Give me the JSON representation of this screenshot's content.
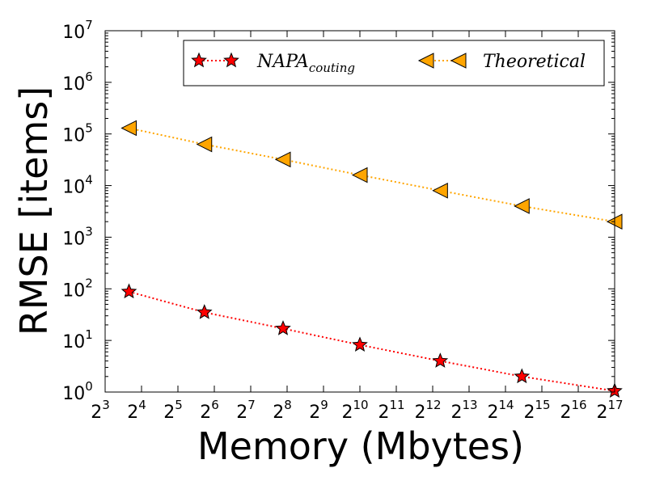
{
  "chart_data": {
    "type": "line",
    "xlabel": "Memory (Mbytes)",
    "ylabel": "RMSE [items]",
    "x_scale": "log2",
    "y_scale": "log10",
    "xlim": [
      8,
      131072
    ],
    "ylim": [
      1,
      10000000
    ],
    "x_ticks": [
      {
        "base": "2",
        "exp": "3",
        "value": 8
      },
      {
        "base": "2",
        "exp": "4",
        "value": 16
      },
      {
        "base": "2",
        "exp": "5",
        "value": 32
      },
      {
        "base": "2",
        "exp": "6",
        "value": 64
      },
      {
        "base": "2",
        "exp": "7",
        "value": 128
      },
      {
        "base": "2",
        "exp": "8",
        "value": 256
      },
      {
        "base": "2",
        "exp": "9",
        "value": 512
      },
      {
        "base": "2",
        "exp": "10",
        "value": 1024
      },
      {
        "base": "2",
        "exp": "11",
        "value": 2048
      },
      {
        "base": "2",
        "exp": "12",
        "value": 4096
      },
      {
        "base": "2",
        "exp": "13",
        "value": 8192
      },
      {
        "base": "2",
        "exp": "14",
        "value": 16384
      },
      {
        "base": "2",
        "exp": "15",
        "value": 32768
      },
      {
        "base": "2",
        "exp": "16",
        "value": 65536
      },
      {
        "base": "2",
        "exp": "17",
        "value": 131072
      }
    ],
    "y_ticks": [
      {
        "base": "10",
        "exp": "0",
        "value": 1
      },
      {
        "base": "10",
        "exp": "1",
        "value": 10
      },
      {
        "base": "10",
        "exp": "2",
        "value": 100
      },
      {
        "base": "10",
        "exp": "3",
        "value": 1000
      },
      {
        "base": "10",
        "exp": "4",
        "value": 10000
      },
      {
        "base": "10",
        "exp": "5",
        "value": 100000
      },
      {
        "base": "10",
        "exp": "6",
        "value": 1000000
      },
      {
        "base": "10",
        "exp": "7",
        "value": 10000000
      }
    ],
    "legend_position": "top-right",
    "grid": false,
    "series": [
      {
        "name": "NAPA",
        "name_sub": "couting",
        "color": "#ff0000",
        "marker_fill": "#ff0000",
        "marker": "star",
        "line_style": "dotted",
        "x": [
          12.6,
          53,
          237,
          1024,
          4730,
          22400,
          131072
        ],
        "y": [
          88,
          35,
          17,
          8.2,
          4,
          2,
          1.05
        ]
      },
      {
        "name": "Theoretical",
        "color": "#ffa500",
        "marker_fill": "#ffa500",
        "marker": "triangle-left",
        "line_style": "dotted",
        "x": [
          12.6,
          53,
          237,
          1024,
          4730,
          22400,
          131072
        ],
        "y": [
          130000,
          63000,
          32000,
          16000,
          8000,
          4000,
          2000
        ]
      }
    ]
  }
}
